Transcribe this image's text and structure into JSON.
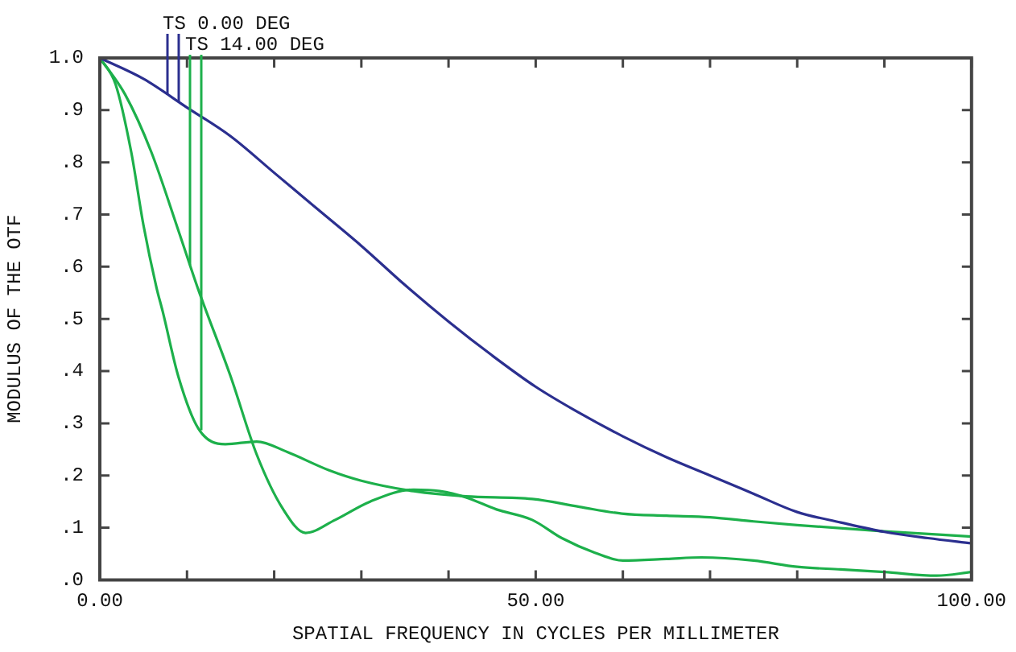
{
  "chart_data": {
    "type": "line",
    "xlabel": "SPATIAL FREQUENCY IN CYCLES PER MILLIMETER",
    "ylabel": "MODULUS OF THE OTF",
    "legend": "top left",
    "marker": "none",
    "line_style": "solid",
    "xlim": [
      0,
      100
    ],
    "xticks": [
      {
        "value": 0,
        "label": "0.00"
      },
      {
        "value": 10,
        "label": null
      },
      {
        "value": 20,
        "label": null
      },
      {
        "value": 30,
        "label": null
      },
      {
        "value": 40,
        "label": null
      },
      {
        "value": 50,
        "label": "50.00"
      },
      {
        "value": 60,
        "label": null
      },
      {
        "value": 70,
        "label": null
      },
      {
        "value": 80,
        "label": null
      },
      {
        "value": 90,
        "label": null
      },
      {
        "value": 100,
        "label": "100.00"
      }
    ],
    "ylim": [
      0,
      1
    ],
    "yticks": [
      {
        "value": 0,
        "label": ".0"
      },
      {
        "value": 0.1,
        "label": ".1"
      },
      {
        "value": 0.2,
        "label": ".2"
      },
      {
        "value": 0.3,
        "label": ".3"
      },
      {
        "value": 0.4,
        "label": ".4"
      },
      {
        "value": 0.5,
        "label": ".5"
      },
      {
        "value": 0.6,
        "label": ".6"
      },
      {
        "value": 0.7,
        "label": ".7"
      },
      {
        "value": 0.8,
        "label": ".8"
      },
      {
        "value": 0.9,
        "label": ".9"
      },
      {
        "value": 1,
        "label": "1.0"
      }
    ],
    "series": [
      {
        "name": "TS 0.00 DEG",
        "color": "#2b2f8f",
        "x": [
          0,
          5,
          10,
          15,
          20,
          25,
          30,
          35,
          40,
          45,
          50,
          55,
          60,
          65,
          70,
          75,
          80,
          85,
          90,
          95,
          100
        ],
        "values": [
          1.0,
          0.96,
          0.905,
          0.85,
          0.78,
          0.71,
          0.64,
          0.565,
          0.495,
          0.43,
          0.37,
          0.32,
          0.275,
          0.235,
          0.2,
          0.165,
          0.13,
          0.11,
          0.092,
          0.08,
          0.07
        ]
      },
      {
        "name": "TS 14.00 DEG",
        "color": "#1db04b",
        "x": [
          0,
          2.9,
          5.9,
          9,
          11.3,
          15,
          18,
          21,
          23.6,
          27,
          31,
          36,
          39,
          42,
          45.5,
          49.6,
          53,
          56.8,
          60,
          65,
          69,
          75,
          80,
          85,
          90,
          96,
          100
        ],
        "values": [
          1.0,
          0.93,
          0.82,
          0.67,
          0.556,
          0.39,
          0.24,
          0.136,
          0.09,
          0.115,
          0.15,
          0.173,
          0.17,
          0.158,
          0.135,
          0.115,
          0.08,
          0.052,
          0.037,
          0.04,
          0.043,
          0.037,
          0.025,
          0.02,
          0.015,
          0.008,
          0.015
        ]
      },
      {
        "color": "#1db04b",
        "x": [
          0,
          1.8,
          3.6,
          5,
          6.5,
          7.2,
          9,
          11.3,
          14.4,
          18,
          21.5,
          26.3,
          30,
          36,
          42,
          49.6,
          55,
          59.9,
          65,
          70,
          75,
          80,
          90,
          100
        ],
        "values": [
          1.0,
          0.95,
          0.82,
          0.68,
          0.56,
          0.515,
          0.39,
          0.29,
          0.26,
          0.265,
          0.245,
          0.21,
          0.19,
          0.17,
          0.16,
          0.155,
          0.14,
          0.127,
          0.123,
          0.12,
          0.112,
          0.105,
          0.093,
          0.083
        ]
      }
    ]
  }
}
